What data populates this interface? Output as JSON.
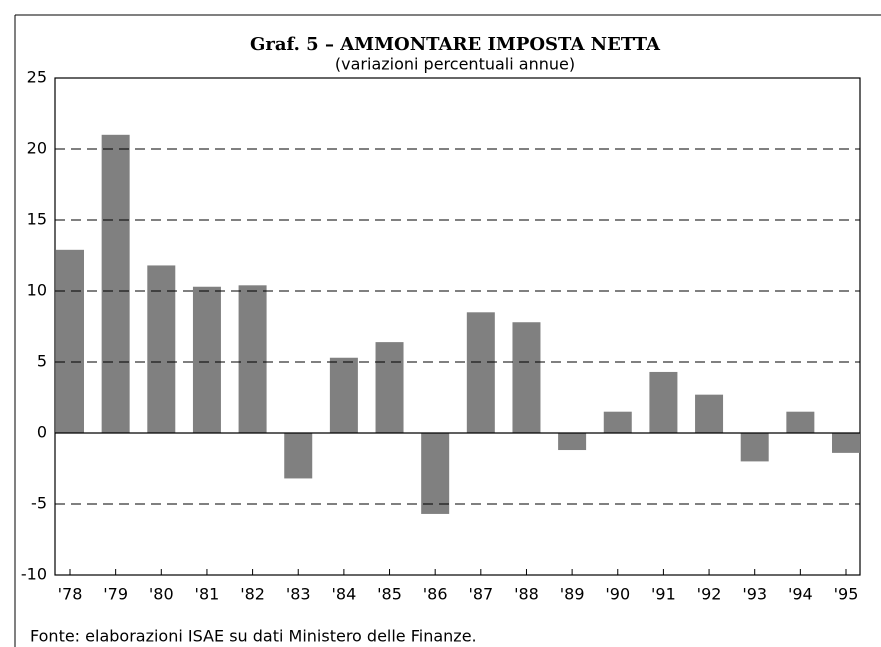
{
  "chart_data": {
    "type": "bar",
    "title": "Graf. 5 – AMMONTARE IMPOSTA NETTA",
    "subtitle": "(variazioni percentuali annue)",
    "source": "Fonte: elaborazioni ISAE su dati Ministero delle Finanze.",
    "categories": [
      "'78",
      "'79",
      "'80",
      "'81",
      "'82",
      "'83",
      "'84",
      "'85",
      "'86",
      "'87",
      "'88",
      "'89",
      "'90",
      "'91",
      "'92",
      "'93",
      "'94",
      "'95"
    ],
    "values": [
      12.9,
      21.0,
      11.8,
      10.3,
      10.4,
      -3.2,
      5.3,
      6.4,
      -5.7,
      8.5,
      7.8,
      -1.2,
      1.5,
      4.3,
      2.7,
      -2.0,
      1.5,
      -1.4
    ],
    "color": "#808080",
    "ylim": [
      -10,
      25
    ],
    "yticks": [
      -10,
      -5,
      0,
      5,
      10,
      15,
      20,
      25
    ],
    "grid": true
  }
}
